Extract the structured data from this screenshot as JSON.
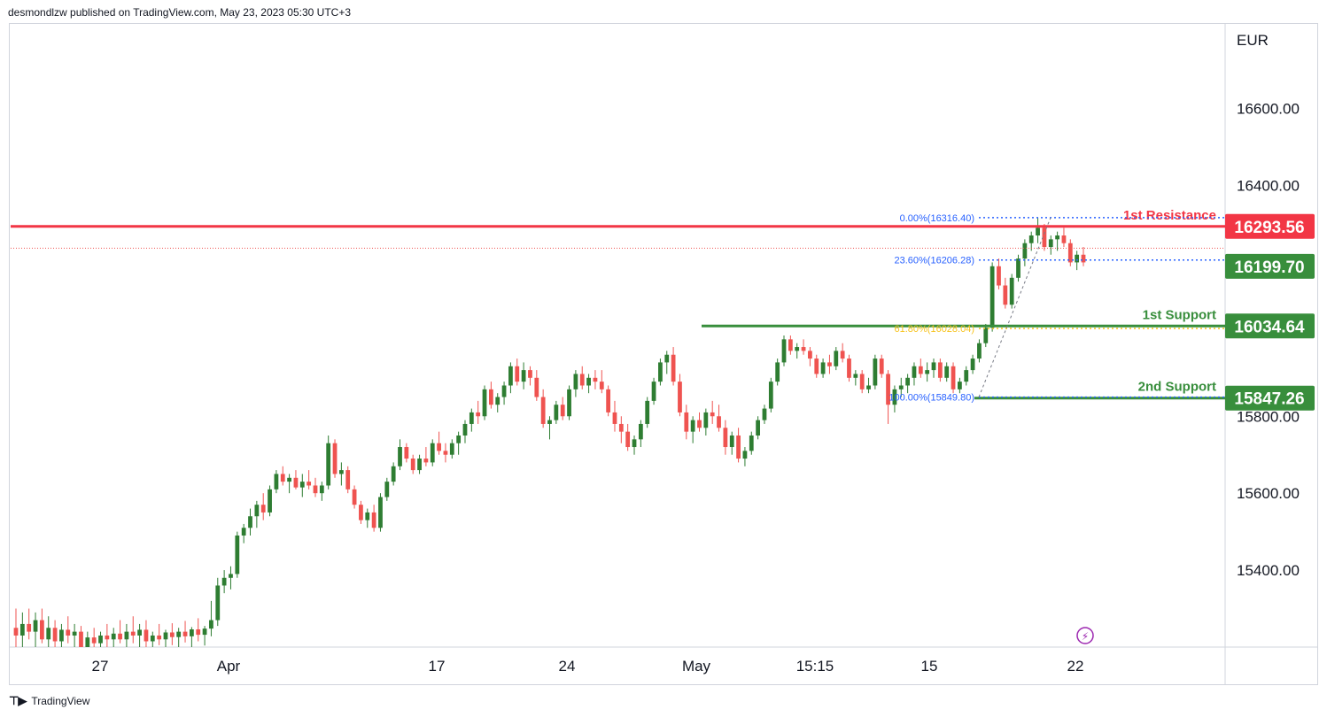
{
  "header": {
    "text": "desmondlzw published on TradingView.com, May 23, 2023 05:30 UTC+3"
  },
  "footer": {
    "logo_icon": "tradingview-logo-icon",
    "brand": "TradingView"
  },
  "colors": {
    "up": "#2e7d32",
    "down": "#ef5350",
    "resistance": "#f23645",
    "support": "#388e3c",
    "fib_blue": "#2962ff",
    "fib_gold": "#f7c31d"
  },
  "chart_data": {
    "type": "candlestick",
    "currency_label": "EUR",
    "y_ticks": [
      "16600.00",
      "16400.00",
      "15800.00",
      "15600.00",
      "15400.00"
    ],
    "y_range": [
      15200,
      16820
    ],
    "x_ticks": [
      "27",
      "Apr",
      "17",
      "24",
      "May",
      "15:15",
      "15",
      "22"
    ],
    "lines": [
      {
        "name": "1st Resistance",
        "value": 16293.56,
        "label": "16293.56",
        "kind": "resistance"
      },
      {
        "name": "1st Support",
        "value": 16034.64,
        "label": "16034.64",
        "kind": "support"
      },
      {
        "name": "2nd Support",
        "value": 15847.26,
        "label": "15847.26",
        "kind": "support"
      }
    ],
    "current_price": {
      "value": 16199.7,
      "label": "16199.70"
    },
    "fibonacci": [
      {
        "label": "0.00%(16316.40)",
        "value": 16316.4
      },
      {
        "label": "23.60%(16206.28)",
        "value": 16206.28
      },
      {
        "label": "61.80%(16028.04)",
        "value": 16028.04
      },
      {
        "label": "100.00%(15849.80)",
        "value": 15849.8
      }
    ],
    "candles_ohlc_approx": [
      [
        15250,
        15300,
        15200,
        15230
      ],
      [
        15230,
        15290,
        15190,
        15260
      ],
      [
        15260,
        15300,
        15220,
        15240
      ],
      [
        15240,
        15290,
        15200,
        15270
      ],
      [
        15270,
        15300,
        15210,
        15220
      ],
      [
        15220,
        15280,
        15190,
        15250
      ],
      [
        15250,
        15270,
        15200,
        15215
      ],
      [
        15215,
        15260,
        15190,
        15245
      ],
      [
        15245,
        15280,
        15210,
        15230
      ],
      [
        15230,
        15260,
        15190,
        15240
      ],
      [
        15240,
        15255,
        15180,
        15200
      ],
      [
        15200,
        15240,
        15170,
        15225
      ],
      [
        15225,
        15250,
        15190,
        15210
      ],
      [
        15210,
        15240,
        15180,
        15230
      ],
      [
        15230,
        15260,
        15200,
        15220
      ],
      [
        15220,
        15250,
        15190,
        15235
      ],
      [
        15235,
        15270,
        15210,
        15220
      ],
      [
        15220,
        15260,
        15200,
        15240
      ],
      [
        15240,
        15280,
        15210,
        15230
      ],
      [
        15230,
        15260,
        15200,
        15245
      ],
      [
        15245,
        15270,
        15200,
        15215
      ],
      [
        15215,
        15240,
        15180,
        15230
      ],
      [
        15230,
        15260,
        15205,
        15220
      ],
      [
        15220,
        15245,
        15195,
        15238
      ],
      [
        15238,
        15262,
        15205,
        15226
      ],
      [
        15226,
        15250,
        15198,
        15240
      ],
      [
        15240,
        15268,
        15212,
        15228
      ],
      [
        15228,
        15252,
        15200,
        15246
      ],
      [
        15246,
        15275,
        15215,
        15232
      ],
      [
        15232,
        15255,
        15204,
        15248
      ],
      [
        15248,
        15320,
        15228,
        15270
      ],
      [
        15270,
        15380,
        15255,
        15360
      ],
      [
        15360,
        15400,
        15340,
        15380
      ],
      [
        15380,
        15410,
        15350,
        15390
      ],
      [
        15390,
        15500,
        15380,
        15490
      ],
      [
        15490,
        15520,
        15470,
        15510
      ],
      [
        15510,
        15560,
        15490,
        15540
      ],
      [
        15540,
        15580,
        15510,
        15570
      ],
      [
        15570,
        15600,
        15530,
        15550
      ],
      [
        15550,
        15620,
        15540,
        15610
      ],
      [
        15610,
        15660,
        15600,
        15650
      ],
      [
        15650,
        15670,
        15620,
        15630
      ],
      [
        15630,
        15650,
        15600,
        15640
      ],
      [
        15640,
        15660,
        15610,
        15615
      ],
      [
        15615,
        15650,
        15590,
        15630
      ],
      [
        15630,
        15660,
        15610,
        15620
      ],
      [
        15620,
        15640,
        15590,
        15600
      ],
      [
        15600,
        15630,
        15580,
        15620
      ],
      [
        15620,
        15750,
        15610,
        15730
      ],
      [
        15730,
        15740,
        15640,
        15650
      ],
      [
        15650,
        15680,
        15620,
        15660
      ],
      [
        15660,
        15670,
        15600,
        15610
      ],
      [
        15610,
        15620,
        15560,
        15570
      ],
      [
        15570,
        15580,
        15520,
        15530
      ],
      [
        15530,
        15560,
        15510,
        15550
      ],
      [
        15550,
        15570,
        15500,
        15510
      ],
      [
        15510,
        15600,
        15500,
        15590
      ],
      [
        15590,
        15640,
        15580,
        15630
      ],
      [
        15630,
        15680,
        15620,
        15670
      ],
      [
        15670,
        15740,
        15660,
        15720
      ],
      [
        15720,
        15730,
        15680,
        15690
      ],
      [
        15690,
        15700,
        15650,
        15660
      ],
      [
        15660,
        15700,
        15650,
        15690
      ],
      [
        15690,
        15720,
        15670,
        15680
      ],
      [
        15680,
        15740,
        15670,
        15730
      ],
      [
        15730,
        15760,
        15700,
        15710
      ],
      [
        15710,
        15730,
        15680,
        15700
      ],
      [
        15700,
        15740,
        15690,
        15730
      ],
      [
        15730,
        15760,
        15700,
        15750
      ],
      [
        15750,
        15790,
        15730,
        15780
      ],
      [
        15780,
        15820,
        15760,
        15810
      ],
      [
        15810,
        15840,
        15780,
        15800
      ],
      [
        15800,
        15880,
        15790,
        15870
      ],
      [
        15870,
        15890,
        15820,
        15830
      ],
      [
        15830,
        15860,
        15810,
        15850
      ],
      [
        15850,
        15890,
        15830,
        15880
      ],
      [
        15880,
        15940,
        15860,
        15930
      ],
      [
        15930,
        15950,
        15880,
        15890
      ],
      [
        15890,
        15940,
        15870,
        15920
      ],
      [
        15920,
        15930,
        15880,
        15900
      ],
      [
        15900,
        15920,
        15840,
        15850
      ],
      [
        15850,
        15870,
        15770,
        15780
      ],
      [
        15780,
        15800,
        15740,
        15790
      ],
      [
        15790,
        15840,
        15780,
        15830
      ],
      [
        15830,
        15850,
        15790,
        15800
      ],
      [
        15800,
        15880,
        15790,
        15870
      ],
      [
        15870,
        15920,
        15850,
        15910
      ],
      [
        15910,
        15930,
        15870,
        15880
      ],
      [
        15880,
        15910,
        15860,
        15900
      ],
      [
        15900,
        15920,
        15870,
        15890
      ],
      [
        15890,
        15920,
        15860,
        15870
      ],
      [
        15870,
        15880,
        15800,
        15810
      ],
      [
        15810,
        15840,
        15760,
        15780
      ],
      [
        15780,
        15800,
        15730,
        15760
      ],
      [
        15760,
        15780,
        15710,
        15720
      ],
      [
        15720,
        15750,
        15700,
        15740
      ],
      [
        15740,
        15790,
        15720,
        15780
      ],
      [
        15780,
        15850,
        15770,
        15840
      ],
      [
        15840,
        15900,
        15830,
        15890
      ],
      [
        15890,
        15950,
        15880,
        15940
      ],
      [
        15940,
        15970,
        15910,
        15960
      ],
      [
        15960,
        15980,
        15880,
        15890
      ],
      [
        15890,
        15910,
        15800,
        15810
      ],
      [
        15810,
        15830,
        15740,
        15760
      ],
      [
        15760,
        15800,
        15730,
        15790
      ],
      [
        15790,
        15810,
        15760,
        15770
      ],
      [
        15770,
        15820,
        15750,
        15810
      ],
      [
        15810,
        15840,
        15780,
        15800
      ],
      [
        15800,
        15830,
        15760,
        15770
      ],
      [
        15770,
        15790,
        15700,
        15720
      ],
      [
        15720,
        15760,
        15700,
        15750
      ],
      [
        15750,
        15770,
        15680,
        15690
      ],
      [
        15690,
        15720,
        15670,
        15710
      ],
      [
        15710,
        15760,
        15700,
        15750
      ],
      [
        15750,
        15800,
        15740,
        15790
      ],
      [
        15790,
        15830,
        15780,
        15820
      ],
      [
        15820,
        15900,
        15810,
        15890
      ],
      [
        15890,
        15950,
        15880,
        15940
      ],
      [
        15940,
        16010,
        15930,
        16000
      ],
      [
        16000,
        16010,
        15960,
        15970
      ],
      [
        15970,
        15990,
        15950,
        15980
      ],
      [
        15980,
        16000,
        15960,
        15970
      ],
      [
        15970,
        15980,
        15930,
        15950
      ],
      [
        15950,
        15960,
        15900,
        15910
      ],
      [
        15910,
        15950,
        15900,
        15940
      ],
      [
        15940,
        15960,
        15910,
        15930
      ],
      [
        15930,
        15980,
        15920,
        15970
      ],
      [
        15970,
        15990,
        15940,
        15950
      ],
      [
        15950,
        15960,
        15890,
        15900
      ],
      [
        15900,
        15920,
        15880,
        15910
      ],
      [
        15910,
        15920,
        15860,
        15870
      ],
      [
        15870,
        15900,
        15860,
        15880
      ],
      [
        15880,
        15960,
        15870,
        15950
      ],
      [
        15950,
        15960,
        15900,
        15910
      ],
      [
        15910,
        15920,
        15780,
        15830
      ],
      [
        15830,
        15880,
        15810,
        15870
      ],
      [
        15870,
        15900,
        15850,
        15880
      ],
      [
        15880,
        15910,
        15860,
        15900
      ],
      [
        15900,
        15940,
        15880,
        15930
      ],
      [
        15930,
        15950,
        15900,
        15910
      ],
      [
        15910,
        15940,
        15890,
        15920
      ],
      [
        15920,
        15950,
        15900,
        15940
      ],
      [
        15940,
        15950,
        15890,
        15900
      ],
      [
        15900,
        15940,
        15890,
        15930
      ],
      [
        15930,
        15940,
        15860,
        15870
      ],
      [
        15870,
        15900,
        15860,
        15890
      ],
      [
        15890,
        15930,
        15880,
        15920
      ],
      [
        15920,
        15960,
        15910,
        15950
      ],
      [
        15950,
        16000,
        15940,
        15990
      ],
      [
        15990,
        16040,
        15980,
        16030
      ],
      [
        16030,
        16200,
        16020,
        16190
      ],
      [
        16190,
        16210,
        16130,
        16140
      ],
      [
        16140,
        16160,
        16080,
        16090
      ],
      [
        16090,
        16170,
        16080,
        16160
      ],
      [
        16160,
        16220,
        16150,
        16210
      ],
      [
        16210,
        16260,
        16190,
        16250
      ],
      [
        16250,
        16280,
        16230,
        16270
      ],
      [
        16270,
        16316,
        16250,
        16290
      ],
      [
        16290,
        16300,
        16230,
        16240
      ],
      [
        16240,
        16270,
        16220,
        16260
      ],
      [
        16260,
        16280,
        16230,
        16270
      ],
      [
        16270,
        16290,
        16240,
        16250
      ],
      [
        16250,
        16260,
        16190,
        16200
      ],
      [
        16200,
        16230,
        16180,
        16220
      ],
      [
        16220,
        16240,
        16190,
        16200
      ]
    ]
  }
}
